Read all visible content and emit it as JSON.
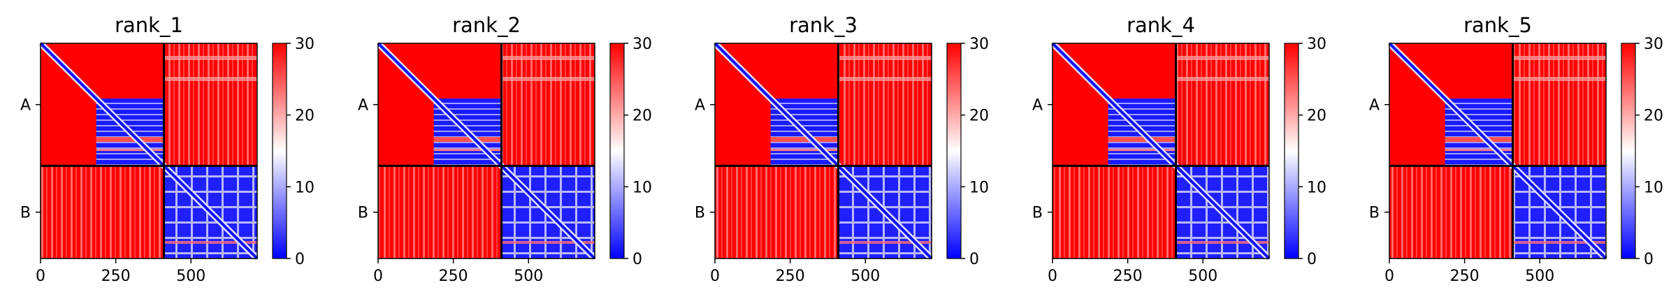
{
  "chart_data": {
    "type": "heatmap",
    "colorbar": {
      "ticks": [
        0,
        10,
        20,
        30
      ],
      "range": [
        0,
        30
      ],
      "colors": [
        "#0000ff",
        "#ffffff",
        "#ff0000"
      ]
    },
    "chain_labels": [
      "A",
      "B"
    ],
    "chain_boundary": 410,
    "x_ticks": [
      0,
      250,
      500
    ],
    "x_range": [
      0,
      720
    ],
    "panels": [
      {
        "title": "rank_1"
      },
      {
        "title": "rank_2"
      },
      {
        "title": "rank_3"
      },
      {
        "title": "rank_4"
      },
      {
        "title": "rank_5"
      }
    ]
  }
}
